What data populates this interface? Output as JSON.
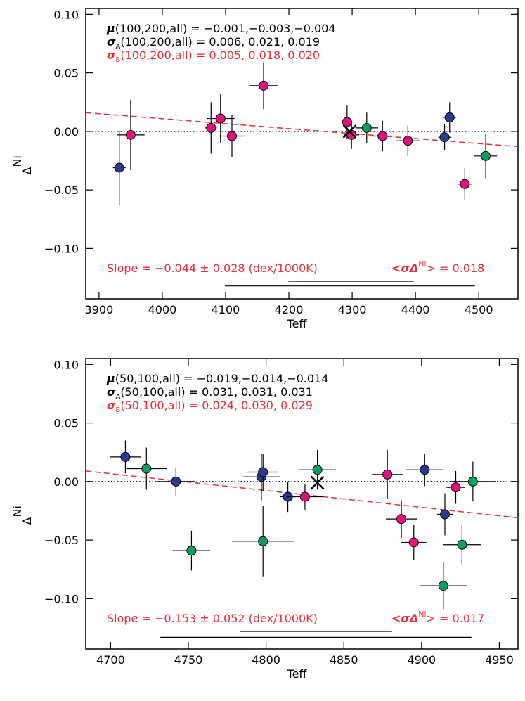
{
  "chart_data": [
    {
      "type": "scatter",
      "annotations": [
        {
          "symbol": "μ",
          "text": "(100,200,all) = −0.001,−0.003,−0.004",
          "color": "#000000"
        },
        {
          "symbol": "σ",
          "sub": "A",
          "text": "(100,200,all) =   0.006, 0.021, 0.019",
          "color": "#000000"
        },
        {
          "symbol": "σ",
          "sub": "B",
          "text": "(100,200,all) =   0.005, 0.018, 0.020",
          "color": "#e8303a"
        }
      ],
      "slope_text": {
        "text": "Slope = −0.044 ± 0.028 (dex/1000K)",
        "color": "#e8303a"
      },
      "mean_text": {
        "symbol": "<σΔ",
        "sup": "Ni",
        "text": "> = 0.018",
        "color": "#e8303a"
      },
      "xlabel": "Teff",
      "ylabel": {
        "symbol": "Δ",
        "sup": "Ni"
      },
      "xlim": [
        3879,
        4562
      ],
      "ylim": [
        -0.143,
        0.105
      ],
      "xticks": [
        3900,
        4000,
        4100,
        4200,
        4300,
        4400,
        4500
      ],
      "yticks": [
        {
          "value": 0.1,
          "label": "0.10"
        },
        {
          "value": 0.05,
          "label": "0.05"
        },
        {
          "value": 0,
          "label": "0.00"
        },
        {
          "value": -0.05,
          "label": "−0.05"
        },
        {
          "value": -0.1,
          "label": "−0.10"
        }
      ],
      "hline": 0,
      "fit": {
        "color": "#e8303a",
        "x": [
          3879,
          4562
        ],
        "values": [
          0.016,
          -0.013
        ]
      },
      "ranges": [
        {
          "x": [
            4099,
            4494
          ],
          "y": -0.132
        },
        {
          "x": [
            4199,
            4397
          ],
          "y": -0.128
        }
      ],
      "series": [
        {
          "color": "#2b3a8f",
          "x": [
            3932,
            4446,
            4454
          ],
          "values": [
            -0.031,
            -0.005,
            0.012
          ],
          "xerr": [
            10,
            10,
            10
          ],
          "yerr": [
            0.032,
            0.011,
            0.013
          ]
        },
        {
          "color": "#e0117f",
          "x": [
            3950,
            4077,
            4092,
            4110,
            4160,
            4292,
            4299,
            4348,
            4388,
            4478
          ],
          "values": [
            -0.003,
            0.003,
            0.011,
            -0.004,
            0.039,
            0.008,
            -0.003,
            -0.004,
            -0.008,
            -0.045
          ],
          "xerr": [
            22,
            9,
            22,
            20,
            22,
            10,
            12,
            18,
            18,
            12
          ],
          "yerr": [
            0.03,
            0.022,
            0.021,
            0.018,
            0.02,
            0.014,
            0.012,
            0.013,
            0.013,
            0.014
          ]
        },
        {
          "color": "#0b9e5b",
          "x": [
            4323,
            4511
          ],
          "values": [
            0.003,
            -0.021
          ],
          "xerr": [
            18,
            18
          ],
          "yerr": [
            0.013,
            0.019
          ]
        },
        {
          "color": "#000000",
          "marker": "x",
          "x": [
            4296
          ],
          "values": [
            0
          ]
        }
      ]
    },
    {
      "type": "scatter",
      "annotations": [
        {
          "symbol": "μ",
          "text": "(50,100,all) = −0.019,−0.014,−0.014",
          "color": "#000000"
        },
        {
          "symbol": "σ",
          "sub": "A",
          "text": "(50,100,all) =  0.031, 0.031, 0.031",
          "color": "#000000"
        },
        {
          "symbol": "σ",
          "sub": "B",
          "text": "(50,100,all) =  0.024, 0.030, 0.029",
          "color": "#e8303a"
        }
      ],
      "slope_text": {
        "text": "Slope = −0.153 ± 0.052 (dex/1000K)",
        "color": "#e8303a"
      },
      "mean_text": {
        "symbol": "<σΔ",
        "sup": "Ni",
        "text": "> = 0.017",
        "color": "#e8303a"
      },
      "xlabel": "Teff",
      "ylabel": {
        "symbol": "Δ",
        "sup": "Ni"
      },
      "xlim": [
        4684,
        4962
      ],
      "ylim": [
        -0.143,
        0.105
      ],
      "xticks": [
        4700,
        4750,
        4800,
        4850,
        4900,
        4950
      ],
      "yticks": [
        {
          "value": 0.1,
          "label": "0.10"
        },
        {
          "value": 0.05,
          "label": "0.05"
        },
        {
          "value": 0,
          "label": "0.00"
        },
        {
          "value": -0.05,
          "label": "−0.05"
        },
        {
          "value": -0.1,
          "label": "−0.10"
        }
      ],
      "hline": 0,
      "fit": {
        "color": "#e8303a",
        "x": [
          4684,
          4962
        ],
        "values": [
          0.009,
          -0.031
        ]
      },
      "ranges": [
        {
          "x": [
            4732,
            4932
          ],
          "y": -0.133
        },
        {
          "x": [
            4783,
            4881
          ],
          "y": -0.128
        }
      ],
      "series": [
        {
          "color": "#2b3a8f",
          "x": [
            4709.5,
            4742,
            4797,
            4798,
            4814,
            4902,
            4915
          ],
          "values": [
            0.021,
            0,
            0.004,
            0.008,
            -0.013,
            0.01,
            -0.028
          ],
          "xerr": [
            10,
            12,
            12,
            10,
            5,
            12,
            5
          ],
          "yerr": [
            0.014,
            0.012,
            0.02,
            0.016,
            0.013,
            0.014,
            0.018
          ]
        },
        {
          "color": "#e0117f",
          "x": [
            4825,
            4878,
            4887,
            4895,
            4922
          ],
          "values": [
            -0.013,
            0.006,
            -0.032,
            -0.052,
            -0.005
          ],
          "xerr": [
            12,
            10,
            10,
            8,
            6
          ],
          "yerr": [
            0.011,
            0.021,
            0.016,
            0.015,
            0.014
          ]
        },
        {
          "color": "#0b9e5b",
          "x": [
            4723,
            4752,
            4798,
            4833,
            4933,
            4926,
            4914
          ],
          "values": [
            0.011,
            -0.059,
            -0.051,
            0.01,
            0,
            -0.054,
            -0.089
          ],
          "xerr": [
            13,
            12,
            20,
            12,
            15,
            12,
            15
          ],
          "yerr": [
            0.018,
            0.017,
            0.03,
            0.017,
            0.017,
            0.017,
            0.02
          ]
        },
        {
          "color": "#000000",
          "marker": "x",
          "x": [
            4833
          ],
          "values": [
            -0.001
          ]
        }
      ]
    }
  ]
}
